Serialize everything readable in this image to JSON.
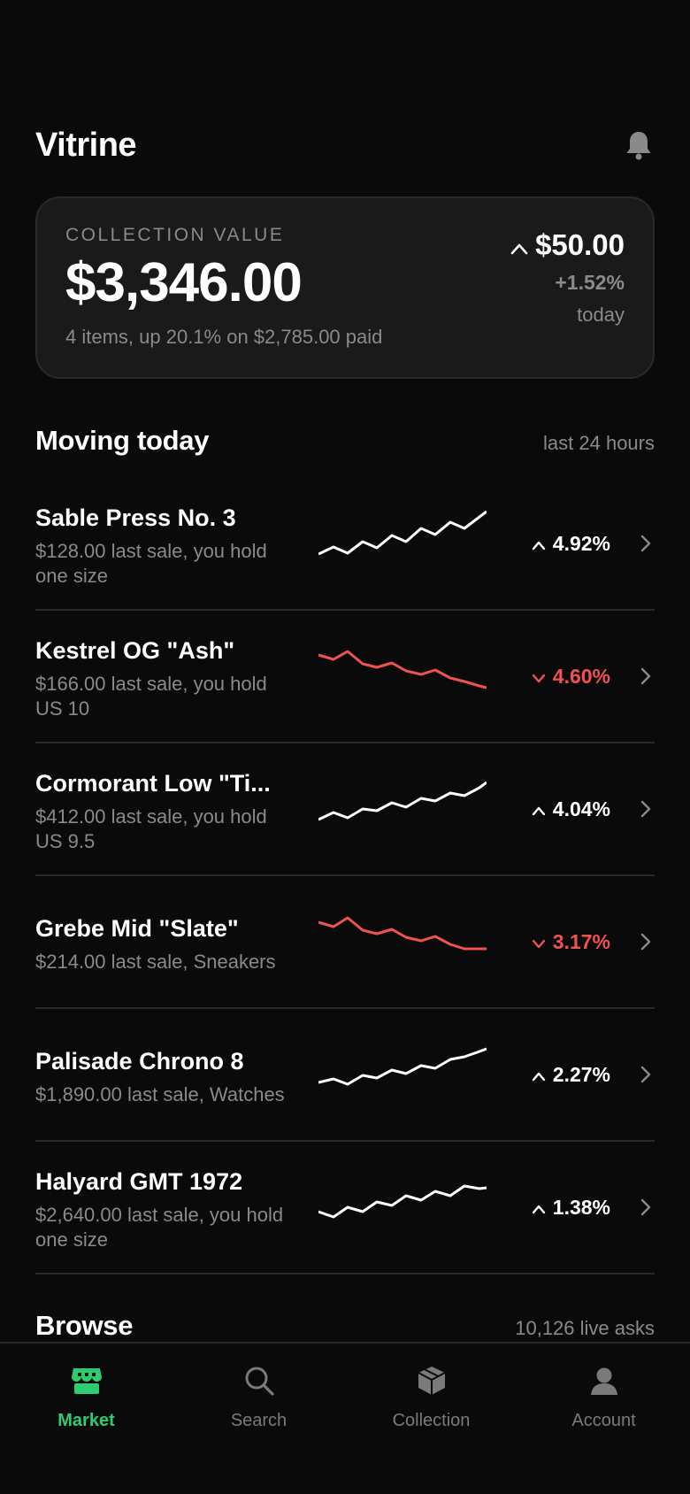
{
  "app": {
    "title": "Vitrine"
  },
  "card": {
    "label": "COLLECTION VALUE",
    "value": "$3,346.00",
    "subtitle": "4 items, up 20.1% on $2,785.00 paid",
    "delta": "$50.00",
    "delta_pct": "+1.52%",
    "period": "today"
  },
  "moving": {
    "title": "Moving today",
    "meta": "last 24 hours",
    "items": [
      {
        "name": "Sable Press No. 3",
        "sub": "$128.00 last sale, you hold one size",
        "change": "4.92%",
        "direction": "up"
      },
      {
        "name": "Kestrel OG \"Ash\"",
        "sub": "$166.00 last sale, you hold US 10",
        "change": "4.60%",
        "direction": "down"
      },
      {
        "name": "Cormorant Low \"Ti...",
        "sub": "$412.00 last sale, you hold US 9.5",
        "change": "4.04%",
        "direction": "up"
      },
      {
        "name": "Grebe Mid \"Slate\"",
        "sub": "$214.00 last sale, Sneakers",
        "change": "3.17%",
        "direction": "down"
      },
      {
        "name": "Palisade Chrono 8",
        "sub": "$1,890.00 last sale, Watches",
        "change": "2.27%",
        "direction": "up"
      },
      {
        "name": "Halyard GMT 1972",
        "sub": "$2,640.00 last sale, you hold one size",
        "change": "1.38%",
        "direction": "up"
      }
    ]
  },
  "browse": {
    "title": "Browse",
    "meta": "10,126 live asks"
  },
  "nav": {
    "items": [
      {
        "label": "Market",
        "icon": "storefront-icon",
        "active": true
      },
      {
        "label": "Search",
        "icon": "search-icon",
        "active": false
      },
      {
        "label": "Collection",
        "icon": "box-icon",
        "active": false
      },
      {
        "label": "Account",
        "icon": "person-icon",
        "active": false
      }
    ]
  },
  "colors": {
    "up": "#ffffff",
    "down": "#ef5350",
    "accent": "#2ecc71",
    "muted": "#8a8a8a"
  }
}
